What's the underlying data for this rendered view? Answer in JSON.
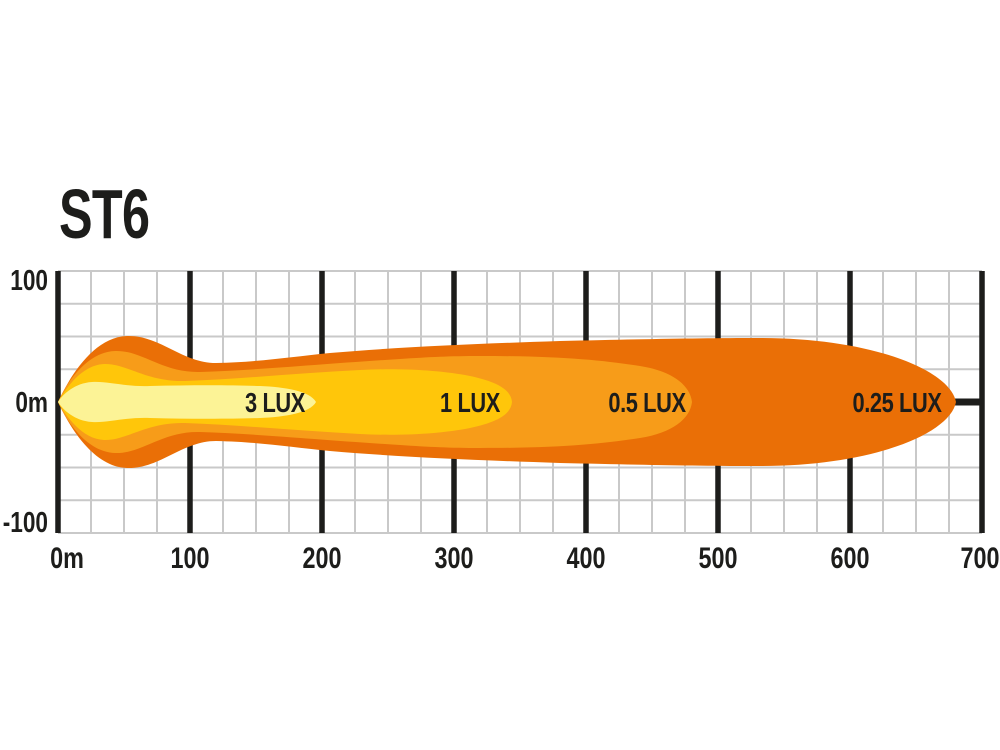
{
  "page": {
    "background": "#FFFFFF"
  },
  "chart_data": {
    "type": "area",
    "title": "ST6",
    "description": "Iso-lux beam pattern: distance (m) along beam vs lateral spread (m)",
    "x_axis": {
      "min": 0,
      "max": 700,
      "major_step": 100,
      "minor_step": 25,
      "tick_labels": [
        "0m",
        "100",
        "200",
        "300",
        "400",
        "500",
        "600",
        "700"
      ]
    },
    "y_axis": {
      "min": -100,
      "max": 100,
      "minor_step": 25,
      "tick_labels": [
        "100",
        "0m",
        "-100"
      ],
      "tick_values": [
        100,
        0,
        -100
      ]
    },
    "grid": {
      "minor_color": "#C9C9C9",
      "major_color": "#1D1D1B",
      "background": "#FFFFFF"
    },
    "series": [
      {
        "name": "0.25 LUX",
        "reach_m": 680,
        "max_half_spread_m": 50,
        "color": "#EA6F06",
        "label_x_m": 636
      },
      {
        "name": "0.5 LUX",
        "reach_m": 480,
        "max_half_spread_m": 38,
        "color": "#F79C19",
        "label_x_m": 446
      },
      {
        "name": "1 LUX",
        "reach_m": 345,
        "max_half_spread_m": 28,
        "color": "#FFC60A",
        "label_x_m": 312
      },
      {
        "name": "3 LUX",
        "reach_m": 200,
        "max_half_spread_m": 15,
        "color": "#FCF396",
        "label_x_m": 164
      }
    ]
  }
}
